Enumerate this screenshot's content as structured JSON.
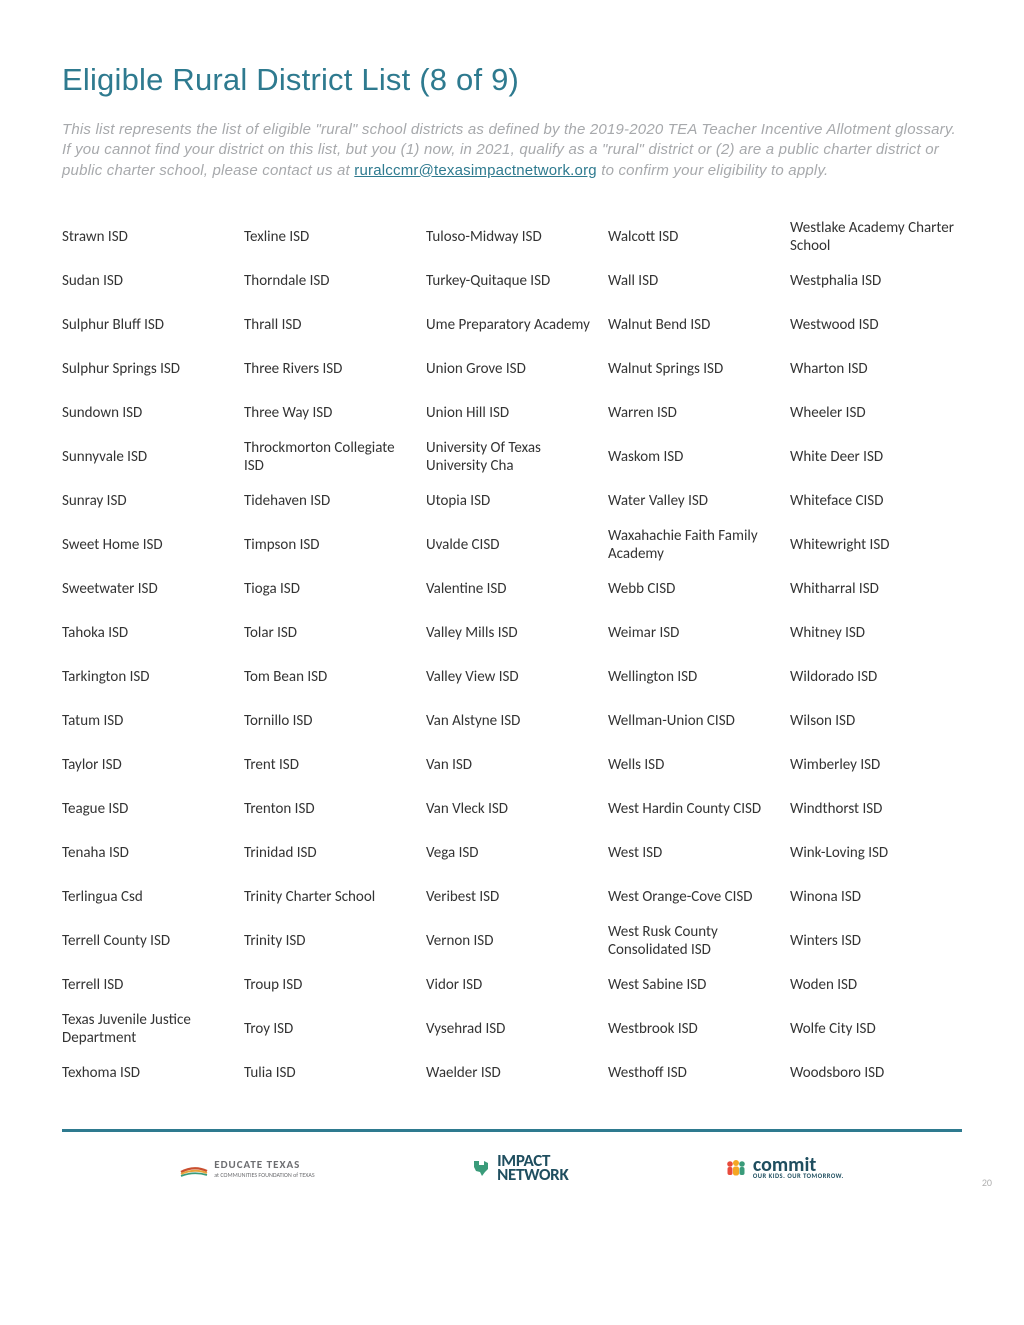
{
  "title": "Eligible Rural District List (8 of 9)",
  "intro": {
    "part1": "This list represents the list of eligible \"rural\" school districts as defined by the 2019-2020 TEA Teacher Incentive Allotment glossary. If you cannot find your district on this list, but you (1) now, in 2021, qualify as a \"rural\" district or (2) are a public charter district or public charter school, please contact us at ",
    "email": "ruralccmr@texasimpactnetwork.org",
    "part2": " to confirm your eligibility to apply."
  },
  "columns": [
    [
      "Strawn ISD",
      "Sudan ISD",
      "Sulphur Bluff ISD",
      "Sulphur Springs ISD",
      "Sundown ISD",
      "Sunnyvale ISD",
      "Sunray ISD",
      "Sweet Home ISD",
      "Sweetwater ISD",
      "Tahoka ISD",
      "Tarkington ISD",
      "Tatum ISD",
      "Taylor ISD",
      "Teague ISD",
      "Tenaha ISD",
      "Terlingua Csd",
      "Terrell County ISD",
      "Terrell ISD",
      "Texas Juvenile Justice Department",
      "Texhoma ISD"
    ],
    [
      "Texline ISD",
      "Thorndale ISD",
      "Thrall ISD",
      "Three Rivers ISD",
      "Three Way ISD",
      "Throckmorton Collegiate ISD",
      "Tidehaven ISD",
      "Timpson ISD",
      "Tioga ISD",
      "Tolar ISD",
      "Tom Bean ISD",
      "Tornillo ISD",
      "Trent ISD",
      "Trenton ISD",
      "Trinidad ISD",
      "Trinity Charter School",
      "Trinity ISD",
      "Troup ISD",
      "Troy ISD",
      "Tulia ISD"
    ],
    [
      "Tuloso-Midway ISD",
      "Turkey-Quitaque ISD",
      "Ume Preparatory Academy",
      "Union Grove ISD",
      "Union Hill ISD",
      "University Of Texas University Cha",
      "Utopia ISD",
      "Uvalde CISD",
      "Valentine ISD",
      "Valley Mills ISD",
      "Valley View ISD",
      "Van Alstyne ISD",
      "Van ISD",
      "Van Vleck ISD",
      "Vega ISD",
      "Veribest ISD",
      "Vernon ISD",
      "Vidor ISD",
      "Vysehrad ISD",
      "Waelder ISD"
    ],
    [
      "Walcott ISD",
      "Wall ISD",
      "Walnut Bend ISD",
      "Walnut Springs ISD",
      "Warren ISD",
      "Waskom ISD",
      "Water Valley ISD",
      "Waxahachie Faith Family Academy",
      "Webb CISD",
      "Weimar ISD",
      "Wellington ISD",
      "Wellman-Union CISD",
      "Wells ISD",
      "West Hardin County CISD",
      "West ISD",
      "West Orange-Cove CISD",
      "West Rusk County Consolidated ISD",
      "West Sabine ISD",
      "Westbrook ISD",
      "Westhoff ISD"
    ],
    [
      "Westlake Academy Charter School",
      "Westphalia ISD",
      "Westwood ISD",
      "Wharton ISD",
      "Wheeler ISD",
      "White Deer ISD",
      "Whiteface CISD",
      "Whitewright ISD",
      "Whitharral ISD",
      "Whitney ISD",
      "Wildorado ISD",
      "Wilson ISD",
      "Wimberley ISD",
      "Windthorst ISD",
      "Wink-Loving ISD",
      "Winona ISD",
      "Winters ISD",
      "Woden ISD",
      "Wolfe City ISD",
      "Woodsboro ISD"
    ]
  ],
  "footer": {
    "logo1_main": "EDUCATE TEXAS",
    "logo1_sub": "at COMMUNITIES FOUNDATION of TEXAS",
    "logo2_line1": "IMPACT",
    "logo2_line2": "NETWORK",
    "logo3_main": "commit",
    "logo3_sub": "OUR KIDS. OUR TOMORROW.",
    "page_number": "20"
  },
  "colors": {
    "accent": "#2e7a8f",
    "muted": "#a7a9ac",
    "text": "#333333",
    "commit_accent_1": "#e84b3c",
    "commit_accent_2": "#f5a623",
    "commit_accent_3": "#3a9b7a"
  }
}
